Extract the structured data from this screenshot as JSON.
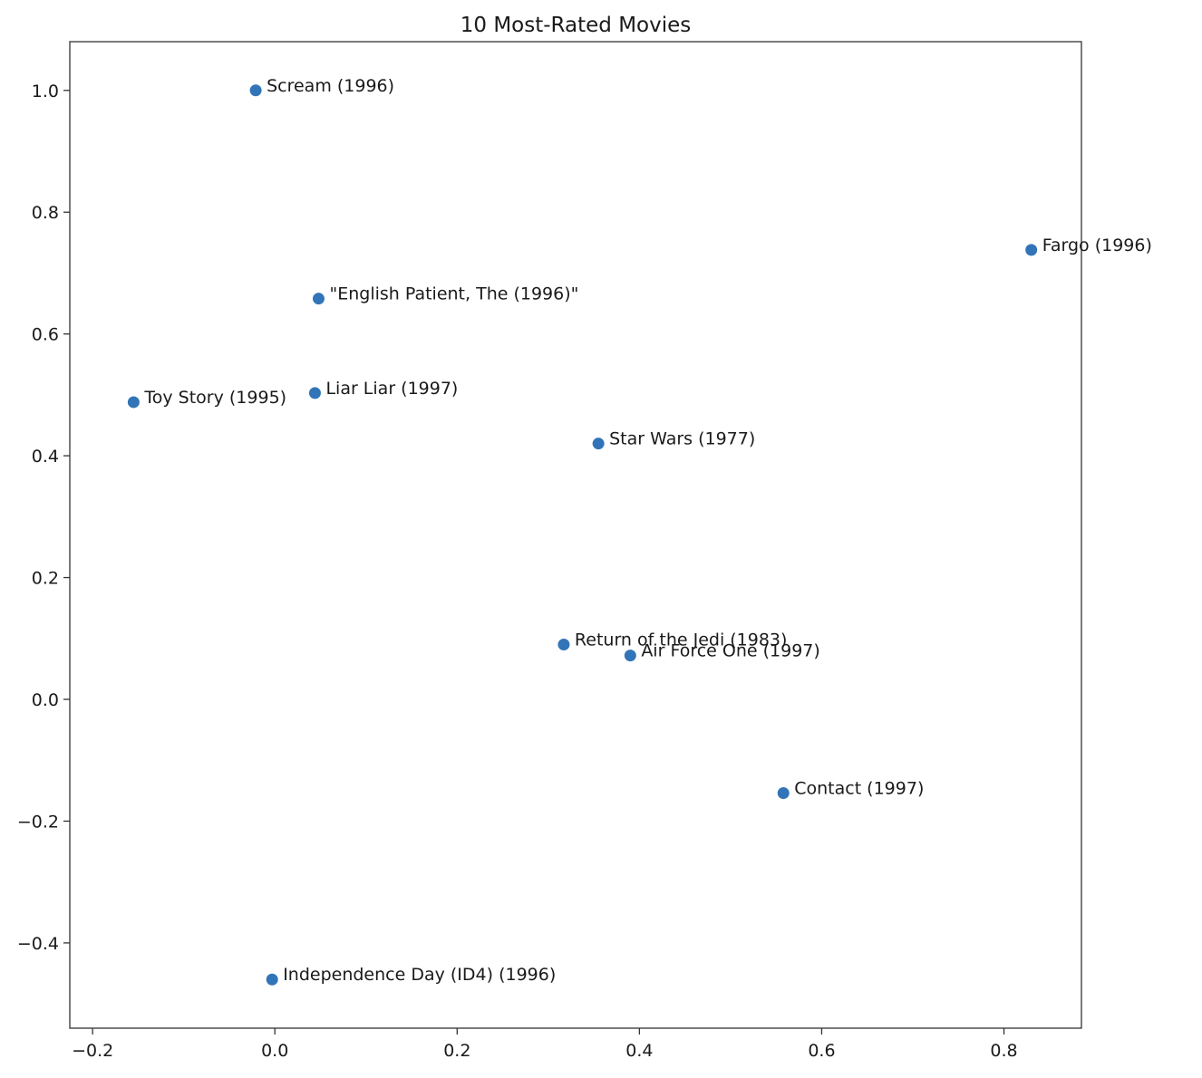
{
  "chart_data": {
    "type": "scatter",
    "title": "10 Most-Rated Movies",
    "xlabel": "",
    "ylabel": "",
    "xlim": [
      -0.225,
      0.885
    ],
    "ylim": [
      -0.54,
      1.08
    ],
    "xticks": [
      -0.2,
      0.0,
      0.2,
      0.4,
      0.6,
      0.8
    ],
    "xtick_labels": [
      "−0.2",
      "0.0",
      "0.2",
      "0.4",
      "0.6",
      "0.8"
    ],
    "yticks": [
      -0.4,
      -0.2,
      0.0,
      0.2,
      0.4,
      0.6,
      0.8,
      1.0
    ],
    "ytick_labels": [
      "−0.4",
      "−0.2",
      "0.0",
      "0.2",
      "0.4",
      "0.6",
      "0.8",
      "1.0"
    ],
    "grid": false,
    "marker_color": "#3274b8",
    "points": [
      {
        "label": "Scream (1996)",
        "x": -0.021,
        "y": 1.0
      },
      {
        "label": "Fargo (1996)",
        "x": 0.83,
        "y": 0.738
      },
      {
        "label": "\"English Patient, The (1996)\"",
        "x": 0.048,
        "y": 0.658
      },
      {
        "label": "Toy Story (1995)",
        "x": -0.155,
        "y": 0.488
      },
      {
        "label": "Liar Liar (1997)",
        "x": 0.044,
        "y": 0.503
      },
      {
        "label": "Star Wars (1977)",
        "x": 0.355,
        "y": 0.42
      },
      {
        "label": "Return of the Jedi (1983)",
        "x": 0.317,
        "y": 0.09
      },
      {
        "label": "Air Force One (1997)",
        "x": 0.39,
        "y": 0.072
      },
      {
        "label": "Contact (1997)",
        "x": 0.558,
        "y": -0.154
      },
      {
        "label": "Independence Day (ID4) (1996)",
        "x": -0.003,
        "y": -0.46
      }
    ]
  }
}
